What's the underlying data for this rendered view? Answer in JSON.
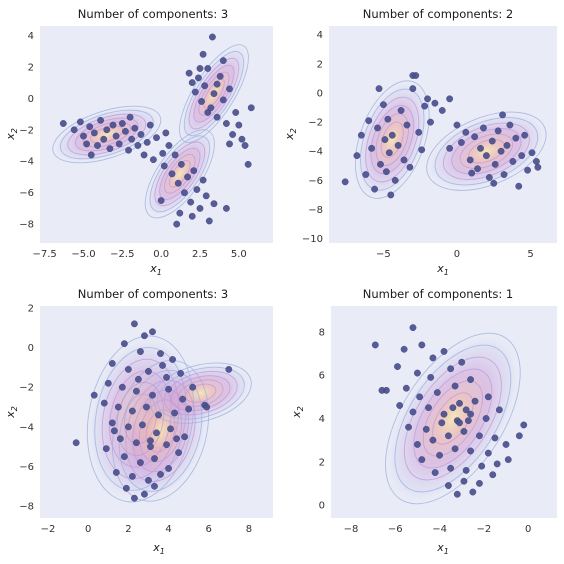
{
  "chart_data": [
    {
      "type": "scatter",
      "title": "Number of components: 3",
      "xlabel": "x1",
      "ylabel": "x2",
      "xlim": [
        -7.8,
        7.2
      ],
      "ylim": [
        -9.2,
        4.6
      ],
      "xticks": [
        -7.5,
        -5.0,
        -2.5,
        0.0,
        2.5,
        5.0
      ],
      "xtick_labels": [
        "−7.5",
        "−5.0",
        "−2.5",
        "0.0",
        "2.5",
        "5.0"
      ],
      "yticks": [
        4,
        2,
        0,
        -2,
        -4,
        -6,
        -8
      ],
      "ytick_labels": [
        "4",
        "2",
        "0",
        "−2",
        "−4",
        "−6",
        "−8"
      ],
      "grid": false,
      "density_blobs": [
        {
          "cx": -3.5,
          "cy": -2.3,
          "rx": 3.6,
          "ry": 1.5,
          "angle": -18
        },
        {
          "cx": 1.2,
          "cy": -4.8,
          "rx": 3.3,
          "ry": 1.4,
          "angle": -55
        },
        {
          "cx": 3.4,
          "cy": 0.3,
          "rx": 3.6,
          "ry": 1.3,
          "angle": -58
        }
      ],
      "points": [
        [
          -6.3,
          -1.6
        ],
        [
          -5.6,
          -2.0
        ],
        [
          -5.2,
          -1.5
        ],
        [
          -5.0,
          -2.4
        ],
        [
          -4.8,
          -2.9
        ],
        [
          -4.6,
          -1.8
        ],
        [
          -4.3,
          -2.2
        ],
        [
          -4.1,
          -3.0
        ],
        [
          -3.9,
          -1.4
        ],
        [
          -3.7,
          -2.6
        ],
        [
          -3.5,
          -2.0
        ],
        [
          -3.3,
          -3.2
        ],
        [
          -3.1,
          -1.7
        ],
        [
          -2.9,
          -2.4
        ],
        [
          -2.7,
          -2.9
        ],
        [
          -2.5,
          -1.6
        ],
        [
          -2.3,
          -2.1
        ],
        [
          -2.1,
          -3.3
        ],
        [
          -1.9,
          -2.6
        ],
        [
          -1.7,
          -1.9
        ],
        [
          -1.5,
          -3.0
        ],
        [
          -1.3,
          -2.3
        ],
        [
          -1.1,
          -3.6
        ],
        [
          -0.9,
          -2.8
        ],
        [
          -0.7,
          -1.7
        ],
        [
          -0.5,
          -3.9
        ],
        [
          -0.3,
          -2.5
        ],
        [
          0.1,
          -3.5
        ],
        [
          0.3,
          -2.2
        ],
        [
          -4.5,
          -3.6
        ],
        [
          -2.0,
          -1.2
        ],
        [
          0.2,
          -4.3
        ],
        [
          0.5,
          -3.0
        ],
        [
          0.7,
          -4.8
        ],
        [
          0.9,
          -3.6
        ],
        [
          1.1,
          -5.4
        ],
        [
          1.3,
          -4.2
        ],
        [
          1.5,
          -6.0
        ],
        [
          1.7,
          -5.0
        ],
        [
          1.9,
          -6.6
        ],
        [
          2.1,
          -4.6
        ],
        [
          2.3,
          -5.8
        ],
        [
          2.5,
          -7.0
        ],
        [
          2.7,
          -5.2
        ],
        [
          2.9,
          -6.2
        ],
        [
          3.1,
          -7.8
        ],
        [
          1.0,
          -8.0
        ],
        [
          1.2,
          -7.3
        ],
        [
          2.0,
          -7.5
        ],
        [
          3.4,
          -6.7
        ],
        [
          0.0,
          -6.5
        ],
        [
          4.2,
          -7.0
        ],
        [
          1.8,
          1.6
        ],
        [
          2.0,
          1.0
        ],
        [
          2.2,
          0.4
        ],
        [
          2.4,
          1.3
        ],
        [
          2.6,
          -0.2
        ],
        [
          2.8,
          0.8
        ],
        [
          3.0,
          1.9
        ],
        [
          3.2,
          -0.6
        ],
        [
          3.3,
          3.9
        ],
        [
          3.4,
          0.3
        ],
        [
          3.6,
          -1.2
        ],
        [
          3.8,
          1.4
        ],
        [
          4.0,
          -0.1
        ],
        [
          4.2,
          -1.6
        ],
        [
          4.4,
          0.6
        ],
        [
          4.6,
          -2.3
        ],
        [
          4.8,
          -0.9
        ],
        [
          5.0,
          -1.7
        ],
        [
          5.2,
          -2.6
        ],
        [
          5.4,
          -3.0
        ],
        [
          5.6,
          -4.2
        ],
        [
          5.8,
          -0.6
        ],
        [
          4.0,
          2.4
        ],
        [
          2.7,
          2.8
        ],
        [
          3.0,
          -0.9
        ],
        [
          4.4,
          -2.9
        ],
        [
          3.6,
          0.9
        ],
        [
          2.5,
          1.9
        ]
      ]
    },
    {
      "type": "scatter",
      "title": "Number of components: 2",
      "xlabel": "x1",
      "ylabel": "x2",
      "xlim": [
        -8.7,
        6.8
      ],
      "ylim": [
        -10.3,
        4.6
      ],
      "xticks": [
        -5,
        0,
        5
      ],
      "xtick_labels": [
        "−5",
        "0",
        "5"
      ],
      "yticks": [
        4,
        2,
        0,
        -2,
        -4,
        -6,
        -8,
        -10
      ],
      "ytick_labels": [
        "4",
        "2",
        "0",
        "−2",
        "−4",
        "−6",
        "−8",
        "−10"
      ],
      "grid": false,
      "density_blobs": [
        {
          "cx": -4.4,
          "cy": -3.2,
          "rx": 4.2,
          "ry": 2.2,
          "angle": -70
        },
        {
          "cx": 2.0,
          "cy": -4.0,
          "rx": 4.3,
          "ry": 2.3,
          "angle": -22
        }
      ],
      "points": [
        [
          -7.6,
          -6.1
        ],
        [
          -6.8,
          -4.3
        ],
        [
          -6.5,
          -2.9
        ],
        [
          -6.2,
          -5.6
        ],
        [
          -6.0,
          -1.9
        ],
        [
          -5.8,
          -3.8
        ],
        [
          -5.6,
          -6.6
        ],
        [
          -5.4,
          -2.4
        ],
        [
          -5.2,
          -4.9
        ],
        [
          -5.0,
          -0.8
        ],
        [
          -4.9,
          -3.2
        ],
        [
          -4.8,
          -5.4
        ],
        [
          -4.7,
          -1.8
        ],
        [
          -4.6,
          -4.1
        ],
        [
          -4.4,
          -2.9
        ],
        [
          -4.2,
          -6.0
        ],
        [
          -4.0,
          -3.6
        ],
        [
          -3.8,
          -1.2
        ],
        [
          -3.6,
          -4.6
        ],
        [
          -3.4,
          -2.2
        ],
        [
          -3.2,
          -5.1
        ],
        [
          -3.0,
          0.3
        ],
        [
          -3.0,
          1.2
        ],
        [
          -2.8,
          1.2
        ],
        [
          -2.6,
          -2.7
        ],
        [
          -2.4,
          -3.9
        ],
        [
          -2.2,
          -0.9
        ],
        [
          -2.0,
          -0.4
        ],
        [
          -1.8,
          -2.0
        ],
        [
          -4.5,
          -7.0
        ],
        [
          -5.3,
          0.3
        ],
        [
          -1.5,
          -0.7
        ],
        [
          -1.0,
          -1.2
        ],
        [
          -0.5,
          -0.4
        ],
        [
          0.0,
          -2.2
        ],
        [
          0.3,
          -3.4
        ],
        [
          0.6,
          -2.7
        ],
        [
          0.9,
          -4.6
        ],
        [
          1.2,
          -3.0
        ],
        [
          1.4,
          -5.2
        ],
        [
          1.6,
          -3.8
        ],
        [
          1.8,
          -2.4
        ],
        [
          2.0,
          -4.3
        ],
        [
          2.2,
          -5.8
        ],
        [
          2.4,
          -3.3
        ],
        [
          2.6,
          -4.9
        ],
        [
          2.8,
          -2.6
        ],
        [
          3.0,
          -4.0
        ],
        [
          3.2,
          -5.6
        ],
        [
          3.4,
          -3.6
        ],
        [
          3.6,
          -2.2
        ],
        [
          3.8,
          -4.7
        ],
        [
          4.0,
          -3.1
        ],
        [
          4.2,
          -6.4
        ],
        [
          4.4,
          -4.3
        ],
        [
          4.6,
          -2.9
        ],
        [
          4.8,
          -5.3
        ],
        [
          5.1,
          -4.1
        ],
        [
          5.5,
          -5.1
        ],
        [
          5.4,
          -4.7
        ],
        [
          1.0,
          -5.5
        ],
        [
          2.5,
          -6.2
        ],
        [
          -0.5,
          -3.8
        ],
        [
          3.1,
          -1.5
        ]
      ]
    },
    {
      "type": "scatter",
      "title": "Number of components: 3",
      "xlabel": "x1",
      "ylabel": "x2",
      "xlim": [
        -2.4,
        9.2
      ],
      "ylim": [
        -8.6,
        2.1
      ],
      "xticks": [
        -2,
        0,
        2,
        4,
        6,
        8
      ],
      "xtick_labels": [
        "−2",
        "0",
        "2",
        "4",
        "6",
        "8"
      ],
      "yticks": [
        2,
        0,
        -2,
        -4,
        -6,
        -8
      ],
      "ytick_labels": [
        "2",
        "0",
        "−2",
        "−4",
        "−6",
        "−8"
      ],
      "grid": false,
      "density_blobs": [
        {
          "cx": 2.6,
          "cy": -3.6,
          "rx": 4.2,
          "ry": 2.6,
          "angle": -80
        },
        {
          "cx": 3.6,
          "cy": -4.2,
          "rx": 3.6,
          "ry": 2.3,
          "angle": -75
        },
        {
          "cx": 5.6,
          "cy": -2.3,
          "rx": 2.6,
          "ry": 1.4,
          "angle": -15
        }
      ],
      "points": [
        [
          2.3,
          1.2
        ],
        [
          2.8,
          0.6
        ],
        [
          3.2,
          0.8
        ],
        [
          1.8,
          0.2
        ],
        [
          2.6,
          -0.2
        ],
        [
          3.6,
          -0.3
        ],
        [
          4.2,
          -0.6
        ],
        [
          1.2,
          -0.8
        ],
        [
          2.0,
          -1.1
        ],
        [
          3.0,
          -1.2
        ],
        [
          3.9,
          -1.5
        ],
        [
          4.6,
          -1.3
        ],
        [
          1.0,
          -1.8
        ],
        [
          1.7,
          -2.0
        ],
        [
          2.4,
          -2.2
        ],
        [
          3.2,
          -2.4
        ],
        [
          4.0,
          -2.1
        ],
        [
          4.7,
          -2.6
        ],
        [
          5.2,
          -2.0
        ],
        [
          0.8,
          -2.8
        ],
        [
          1.5,
          -3.0
        ],
        [
          2.2,
          -3.2
        ],
        [
          2.9,
          -3.0
        ],
        [
          3.5,
          -3.4
        ],
        [
          4.3,
          -3.3
        ],
        [
          5.0,
          -3.1
        ],
        [
          5.8,
          -2.9
        ],
        [
          1.2,
          -3.8
        ],
        [
          2.0,
          -4.0
        ],
        [
          2.7,
          -3.9
        ],
        [
          3.4,
          -4.3
        ],
        [
          4.1,
          -4.1
        ],
        [
          4.8,
          -4.5
        ],
        [
          1.6,
          -4.6
        ],
        [
          2.4,
          -4.8
        ],
        [
          3.1,
          -5.0
        ],
        [
          3.9,
          -4.9
        ],
        [
          4.5,
          -5.3
        ],
        [
          0.9,
          -5.1
        ],
        [
          1.8,
          -5.5
        ],
        [
          2.6,
          -5.8
        ],
        [
          3.3,
          -5.6
        ],
        [
          4.0,
          -6.1
        ],
        [
          1.4,
          -6.3
        ],
        [
          2.2,
          -6.5
        ],
        [
          3.0,
          -6.7
        ],
        [
          3.6,
          -6.4
        ],
        [
          1.9,
          -7.1
        ],
        [
          2.8,
          -7.4
        ],
        [
          3.3,
          -7.0
        ],
        [
          2.3,
          -7.6
        ],
        [
          -0.6,
          -4.8
        ],
        [
          7.0,
          -1.1
        ],
        [
          5.9,
          -3.0
        ],
        [
          0.3,
          -2.4
        ],
        [
          3.7,
          -0.9
        ],
        [
          4.4,
          -4.6
        ],
        [
          2.5,
          -1.6
        ],
        [
          1.3,
          -4.2
        ],
        [
          3.1,
          -4.7
        ]
      ]
    },
    {
      "type": "scatter",
      "title": "Number of components: 1",
      "xlabel": "x1",
      "ylabel": "x2",
      "xlim": [
        -8.9,
        1.3
      ],
      "ylim": [
        -0.6,
        9.2
      ],
      "xticks": [
        -8,
        -6,
        -4,
        -2,
        0
      ],
      "xtick_labels": [
        "−8",
        "−6",
        "−4",
        "−2",
        "0"
      ],
      "yticks": [
        0,
        2,
        4,
        6,
        8
      ],
      "ytick_labels": [
        "0",
        "2",
        "4",
        "6",
        "8"
      ],
      "grid": false,
      "density_blobs": [
        {
          "cx": -3.4,
          "cy": 4.0,
          "rx": 4.4,
          "ry": 2.3,
          "angle": -57
        }
      ],
      "points": [
        [
          -5.2,
          8.2
        ],
        [
          -6.9,
          7.4
        ],
        [
          -5.6,
          7.2
        ],
        [
          -4.8,
          7.4
        ],
        [
          -4.3,
          6.8
        ],
        [
          -3.8,
          7.1
        ],
        [
          -5.9,
          6.4
        ],
        [
          -5.0,
          6.1
        ],
        [
          -4.4,
          5.9
        ],
        [
          -3.5,
          6.3
        ],
        [
          -3.0,
          6.6
        ],
        [
          -6.4,
          5.3
        ],
        [
          -5.5,
          5.4
        ],
        [
          -4.9,
          5.0
        ],
        [
          -4.1,
          5.2
        ],
        [
          -3.3,
          5.5
        ],
        [
          -2.6,
          5.8
        ],
        [
          -5.8,
          4.6
        ],
        [
          -5.2,
          4.3
        ],
        [
          -4.5,
          4.5
        ],
        [
          -3.8,
          4.2
        ],
        [
          -3.1,
          4.7
        ],
        [
          -2.4,
          4.8
        ],
        [
          -1.8,
          5.0
        ],
        [
          -5.4,
          3.6
        ],
        [
          -4.6,
          3.5
        ],
        [
          -3.9,
          3.8
        ],
        [
          -3.2,
          3.9
        ],
        [
          -2.6,
          4.2
        ],
        [
          -1.9,
          4.0
        ],
        [
          -1.3,
          4.4
        ],
        [
          -5.0,
          2.8
        ],
        [
          -4.3,
          3.0
        ],
        [
          -3.6,
          3.2
        ],
        [
          -2.9,
          3.4
        ],
        [
          -2.2,
          3.2
        ],
        [
          -1.5,
          3.1
        ],
        [
          -4.8,
          2.1
        ],
        [
          -4.0,
          2.3
        ],
        [
          -3.3,
          2.6
        ],
        [
          -2.6,
          2.5
        ],
        [
          -1.8,
          2.4
        ],
        [
          -1.0,
          2.8
        ],
        [
          -4.2,
          1.5
        ],
        [
          -3.5,
          1.7
        ],
        [
          -2.8,
          1.6
        ],
        [
          -2.1,
          1.8
        ],
        [
          -1.4,
          1.9
        ],
        [
          -3.6,
          0.9
        ],
        [
          -2.9,
          1.1
        ],
        [
          -2.2,
          1.0
        ],
        [
          -3.2,
          0.5
        ],
        [
          -2.5,
          0.6
        ],
        [
          -0.2,
          3.7
        ],
        [
          -0.4,
          3.2
        ],
        [
          -6.6,
          5.3
        ],
        [
          -2.8,
          4.4
        ],
        [
          -3.1,
          3.8
        ],
        [
          -2.7,
          3.9
        ],
        [
          -3.4,
          4.5
        ],
        [
          -1.6,
          1.4
        ],
        [
          -0.9,
          2.1
        ]
      ]
    }
  ]
}
